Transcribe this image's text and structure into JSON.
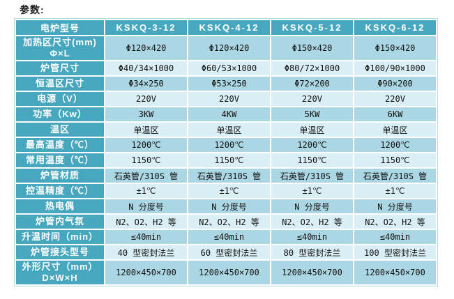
{
  "title": "参数:",
  "colors": {
    "header_teal": "#46a7be",
    "row_dark": "#abd7e4",
    "row_light": "#d9eef5",
    "grid_white": "#ffffff",
    "header_text": "#ffffff",
    "text_dark": "#111111"
  },
  "table": {
    "corner_header": "电炉型号",
    "columns": [
      "KSKQ-3-12",
      "KSKQ-4-12",
      "KSKQ-5-12",
      "KSKQ-6-12"
    ],
    "rows": [
      {
        "label": "加热区尺寸(mm)",
        "label2": "Φ×L",
        "values": [
          "Φ120×420",
          "Φ120×420",
          "Φ150×420",
          "Φ150×420"
        ]
      },
      {
        "label": "炉管尺寸",
        "values": [
          "Φ40/34×1000",
          "Φ60/53×1000",
          "Φ80/72×1000",
          "Φ100/90×1000"
        ]
      },
      {
        "label": "恒温区尺寸",
        "values": [
          "Φ34×250",
          "Φ53×250",
          "Φ72×200",
          "Φ90×200"
        ]
      },
      {
        "label": "电源（V）",
        "values": [
          "220V",
          "220V",
          "220V",
          "220V"
        ]
      },
      {
        "label": "功率（Kw）",
        "values": [
          "3KW",
          "4KW",
          "5KW",
          "6KW"
        ]
      },
      {
        "label": "温区",
        "values": [
          "单温区",
          "单温区",
          "单温区",
          "单温区"
        ]
      },
      {
        "label": "最高温度（℃）",
        "values": [
          "1200℃",
          "1200℃",
          "1200℃",
          "1200℃"
        ]
      },
      {
        "label": "常用温度（℃）",
        "values": [
          "1150℃",
          "1150℃",
          "1150℃",
          "1150℃"
        ]
      },
      {
        "label": "炉管材质",
        "values": [
          "石英管/310S 管",
          "石英管/310S 管",
          "石英管/310S 管",
          "石英管/310S 管"
        ]
      },
      {
        "label": "控温精度（℃）",
        "values": [
          "±1℃",
          "±1℃",
          "±1℃",
          "±1℃"
        ]
      },
      {
        "label": "热电偶",
        "values": [
          "N 分度号",
          "N 分度号",
          "N 分度号",
          "N 分度号"
        ]
      },
      {
        "label": "炉管内气氛",
        "values": [
          "N2、O2、H2 等",
          "N2、O2、H2 等",
          "N2、O2、H2 等",
          "N2、O2、H2 等"
        ]
      },
      {
        "label": "升温时间（min）",
        "values": [
          "≤40min",
          "≤40min",
          "≤40min",
          "≤40min"
        ]
      },
      {
        "label": "炉管接头型号",
        "values": [
          "40 型密封法兰",
          "60 型密封法兰",
          "80 型密封法兰",
          "100 型密封法兰"
        ]
      },
      {
        "label": "外形尺寸（mm）",
        "label2": "D×W×H",
        "values": [
          "1200×450×700",
          "1200×450×700",
          "1200×450×700",
          "1200×450×700"
        ]
      }
    ]
  }
}
